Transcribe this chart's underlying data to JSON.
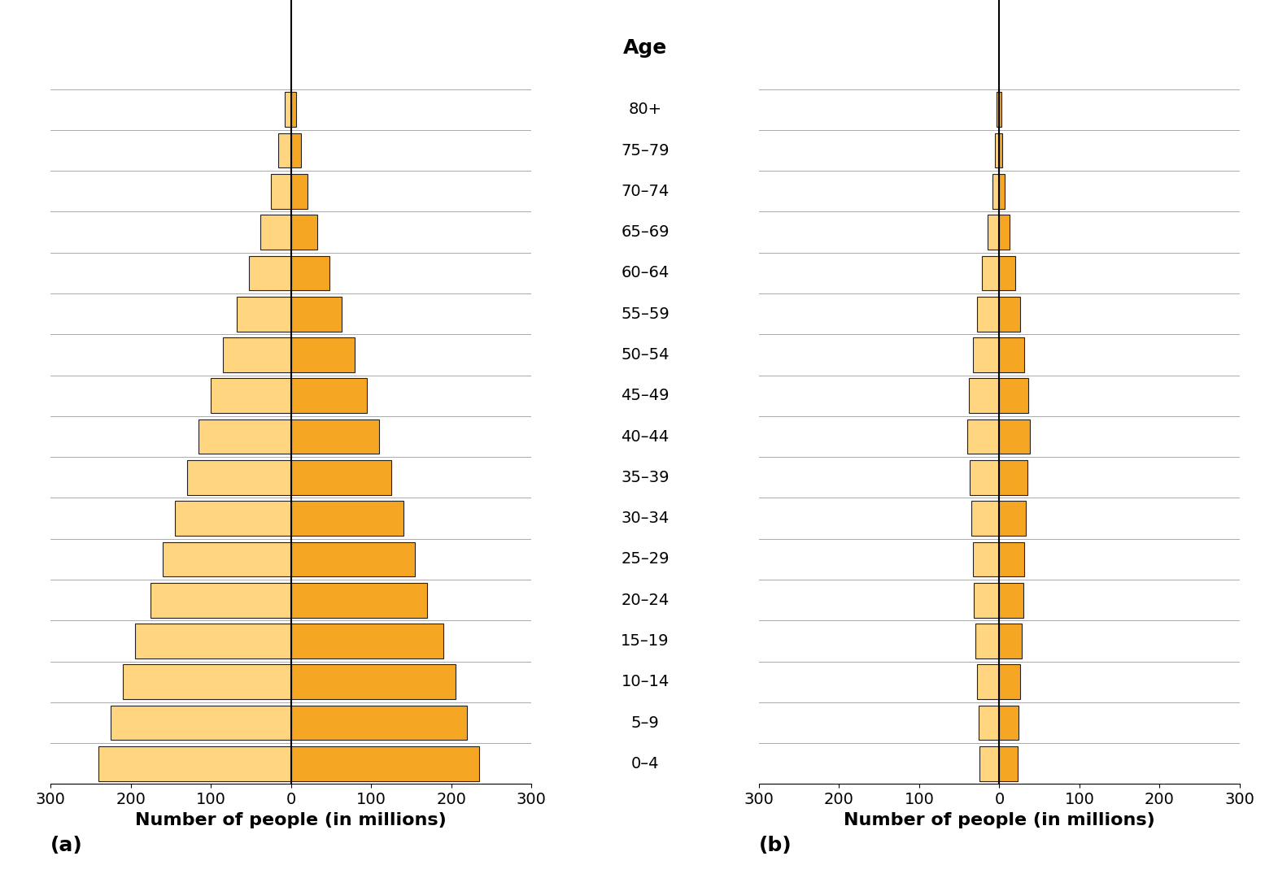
{
  "age_groups": [
    "0–4",
    "5–9",
    "10–14",
    "15–19",
    "20–24",
    "25–29",
    "30–34",
    "35–39",
    "40–44",
    "45–49",
    "50–54",
    "55–59",
    "60–64",
    "65–69",
    "70–74",
    "75–79",
    "80+"
  ],
  "chart_a_female": [
    240,
    225,
    210,
    195,
    175,
    160,
    145,
    130,
    115,
    100,
    85,
    68,
    52,
    38,
    25,
    16,
    8
  ],
  "chart_a_male": [
    235,
    220,
    205,
    190,
    170,
    155,
    140,
    125,
    110,
    95,
    80,
    63,
    48,
    33,
    21,
    13,
    6
  ],
  "chart_b_female": [
    25,
    26,
    28,
    30,
    32,
    33,
    35,
    37,
    40,
    38,
    33,
    28,
    22,
    15,
    9,
    6,
    4
  ],
  "chart_b_male": [
    23,
    24,
    26,
    28,
    30,
    31,
    33,
    35,
    38,
    36,
    31,
    26,
    20,
    13,
    7,
    4,
    3
  ],
  "female_color": "#FFD580",
  "male_color": "#F5A623",
  "bar_edge_color": "#222222",
  "background_color": "#FFFFFF",
  "grid_color": "#AAAAAA",
  "title": "Age",
  "xlabel": "Number of people (in millions)",
  "label_a": "(a)",
  "label_b": "(b)",
  "xlim": 300,
  "title_fontsize": 18,
  "label_fontsize": 16,
  "tick_fontsize": 14,
  "age_label_fontsize": 14
}
